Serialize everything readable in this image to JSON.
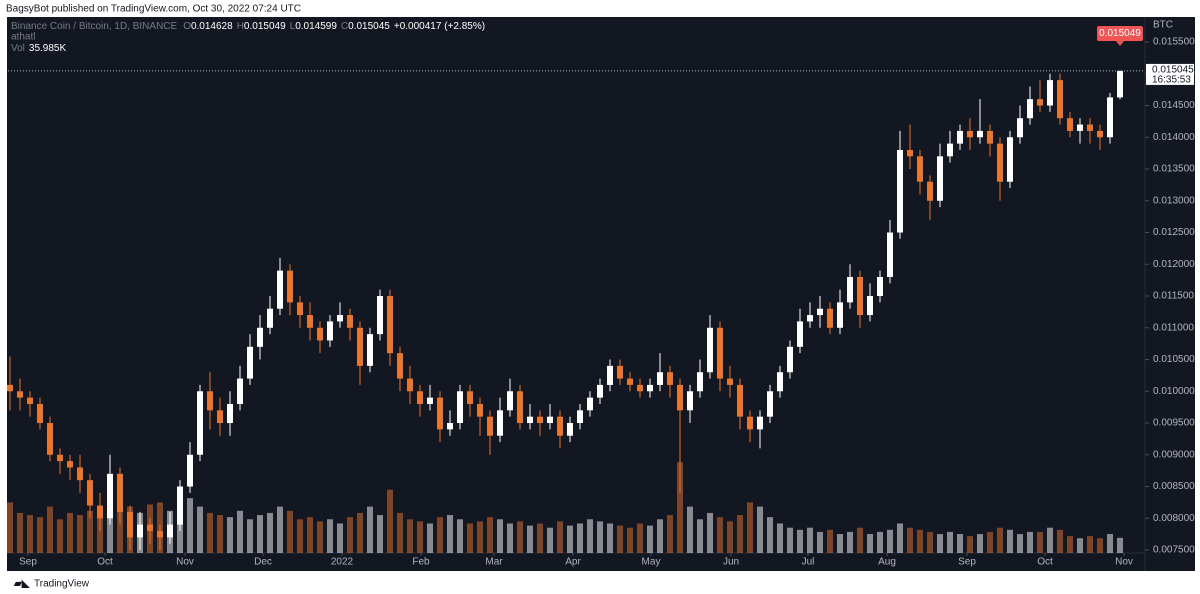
{
  "published": "BagsyBot published on TradingView.com, Oct 30, 2022 07:24 UTC",
  "footer": "TradingView",
  "chart_data": {
    "type": "candlestick",
    "title": "Binance Coin / Bitcoin, 1D, BINANCE",
    "legend": {
      "o": "O",
      "h": "H",
      "l": "L",
      "c": "C",
      "change": "+0.000417 (+2.85%)",
      "indicator": "athatl",
      "vol": "Vol",
      "vol_value": "35.985K"
    },
    "currency": "BTC",
    "countdown": "16:35:53",
    "up_color": "#ffffff",
    "down_color": "#e8762d",
    "xlim": [
      -0.2,
      113.5
    ],
    "xticks": [
      {
        "value": 1.8,
        "label": "Sep"
      },
      {
        "value": 9.5,
        "label": "Oct"
      },
      {
        "value": 17.5,
        "label": "Nov"
      },
      {
        "value": 25.3,
        "label": "Dec"
      },
      {
        "value": 33.2,
        "label": "2022"
      },
      {
        "value": 41.1,
        "label": "Feb"
      },
      {
        "value": 48.4,
        "label": "Mar"
      },
      {
        "value": 56.3,
        "label": "Apr"
      },
      {
        "value": 64.1,
        "label": "May"
      },
      {
        "value": 72.1,
        "label": "Jun"
      },
      {
        "value": 79.8,
        "label": "Jul"
      },
      {
        "value": 87.7,
        "label": "Aug"
      },
      {
        "value": 95.7,
        "label": "Sep"
      },
      {
        "value": 103.5,
        "label": "Oct"
      },
      {
        "value": 111.4,
        "label": "Nov"
      }
    ],
    "ylim": [
      0.007453,
      0.015894
    ],
    "yticks": [
      {
        "value": 0.0155,
        "label": "0.015500"
      },
      {
        "value": 0.015,
        "label": "0.015000"
      },
      {
        "value": 0.0145,
        "label": "0.014500"
      },
      {
        "value": 0.014,
        "label": "0.014000"
      },
      {
        "value": 0.0135,
        "label": "0.013500"
      },
      {
        "value": 0.013,
        "label": "0.013000"
      },
      {
        "value": 0.0125,
        "label": "0.012500"
      },
      {
        "value": 0.012,
        "label": "0.012000"
      },
      {
        "value": 0.0115,
        "label": "0.011500"
      },
      {
        "value": 0.011,
        "label": "0.011000"
      },
      {
        "value": 0.0105,
        "label": "0.010500"
      },
      {
        "value": 0.01,
        "label": "0.010000"
      },
      {
        "value": 0.0095,
        "label": "0.009500"
      },
      {
        "value": 0.009,
        "label": "0.009000"
      },
      {
        "value": 0.0085,
        "label": "0.008500"
      },
      {
        "value": 0.008,
        "label": "0.008000"
      },
      {
        "value": 0.0075,
        "label": "0.007500"
      }
    ],
    "volume_ylim": [
      0,
      600
    ],
    "open": [
      0.0101,
      0.01,
      0.0099,
      0.0098,
      0.0095,
      0.009,
      0.0089,
      0.0088,
      0.0086,
      0.0082,
      0.008,
      0.0087,
      0.0081,
      0.0077,
      0.0079,
      0.0078,
      0.0077,
      0.0079,
      0.0085,
      0.009,
      0.01,
      0.0097,
      0.0095,
      0.0098,
      0.0102,
      0.0107,
      0.011,
      0.0113,
      0.0119,
      0.0114,
      0.0112,
      0.011,
      0.0108,
      0.0111,
      0.0112,
      0.011,
      0.0104,
      0.0109,
      0.0115,
      0.0106,
      0.0102,
      0.01,
      0.0098,
      0.0099,
      0.0094,
      0.0095,
      0.01,
      0.0098,
      0.0096,
      0.0093,
      0.0097,
      0.01,
      0.0095,
      0.0096,
      0.0095,
      0.0096,
      0.0093,
      0.0095,
      0.0097,
      0.0099,
      0.0101,
      0.0104,
      0.0102,
      0.0101,
      0.01,
      0.0101,
      0.0103,
      0.0101,
      0.0097,
      0.01,
      0.0103,
      0.011,
      0.0102,
      0.0101,
      0.0096,
      0.0094,
      0.0096,
      0.01,
      0.0103,
      0.0107,
      0.0111,
      0.0112,
      0.0113,
      0.011,
      0.0114,
      0.0118,
      0.0112,
      0.0115,
      0.0118,
      0.0125,
      0.0138,
      0.0137,
      0.0133,
      0.013,
      0.0137,
      0.0139,
      0.0141,
      0.014,
      0.0141,
      0.0139,
      0.0133,
      0.014,
      0.0143,
      0.0146,
      0.0145,
      0.0149,
      0.0143,
      0.0141,
      0.0142,
      0.0141,
      0.014,
      0.014628
    ],
    "high": [
      0.01055,
      0.0102,
      0.01,
      0.0099,
      0.0096,
      0.0091,
      0.009,
      0.009,
      0.0087,
      0.0084,
      0.009,
      0.0088,
      0.0082,
      0.0081,
      0.008,
      0.0079,
      0.0081,
      0.0086,
      0.0092,
      0.0101,
      0.0103,
      0.0099,
      0.01,
      0.0104,
      0.0109,
      0.0112,
      0.0115,
      0.0121,
      0.012,
      0.0115,
      0.0114,
      0.0111,
      0.0112,
      0.0114,
      0.0113,
      0.0111,
      0.011,
      0.0116,
      0.0116,
      0.0107,
      0.0104,
      0.0101,
      0.0101,
      0.01,
      0.0097,
      0.0101,
      0.0101,
      0.0099,
      0.0097,
      0.0099,
      0.0102,
      0.0101,
      0.0098,
      0.0097,
      0.0098,
      0.0097,
      0.0096,
      0.0098,
      0.01,
      0.0102,
      0.0105,
      0.0105,
      0.0103,
      0.0102,
      0.0102,
      0.0106,
      0.0104,
      0.0102,
      0.0101,
      0.0105,
      0.0112,
      0.0111,
      0.0104,
      0.0102,
      0.0097,
      0.0097,
      0.0101,
      0.0104,
      0.0108,
      0.0113,
      0.0114,
      0.0115,
      0.0114,
      0.0116,
      0.012,
      0.0119,
      0.0117,
      0.0119,
      0.0127,
      0.0141,
      0.0142,
      0.0138,
      0.0134,
      0.0139,
      0.0141,
      0.0142,
      0.0143,
      0.0146,
      0.0142,
      0.014,
      0.0141,
      0.0145,
      0.0148,
      0.0149,
      0.015,
      0.015,
      0.0144,
      0.0143,
      0.0143,
      0.0142,
      0.0147,
      0.015049
    ],
    "low": [
      0.0097,
      0.0097,
      0.0096,
      0.0094,
      0.0089,
      0.0087,
      0.0086,
      0.0084,
      0.008,
      0.0078,
      0.0079,
      0.0079,
      0.0075,
      0.0075,
      0.0076,
      0.0075,
      0.0076,
      0.0078,
      0.0084,
      0.0089,
      0.0094,
      0.0093,
      0.0093,
      0.0097,
      0.0101,
      0.0105,
      0.0109,
      0.0112,
      0.0112,
      0.011,
      0.0108,
      0.0106,
      0.0107,
      0.011,
      0.0108,
      0.0101,
      0.0103,
      0.0108,
      0.0104,
      0.01,
      0.0098,
      0.0096,
      0.0097,
      0.0092,
      0.0093,
      0.0094,
      0.0096,
      0.0093,
      0.009,
      0.0092,
      0.0096,
      0.0094,
      0.0094,
      0.0093,
      0.0094,
      0.0091,
      0.0092,
      0.0094,
      0.0096,
      0.0098,
      0.01,
      0.0101,
      0.01,
      0.0099,
      0.0099,
      0.01,
      0.0099,
      0.0084,
      0.0095,
      0.0099,
      0.0102,
      0.01,
      0.0099,
      0.0094,
      0.0092,
      0.0091,
      0.0095,
      0.0099,
      0.0102,
      0.0106,
      0.011,
      0.011,
      0.0109,
      0.0109,
      0.0113,
      0.011,
      0.0111,
      0.0114,
      0.0117,
      0.0124,
      0.0135,
      0.0131,
      0.0127,
      0.0129,
      0.0136,
      0.0138,
      0.0138,
      0.0139,
      0.0137,
      0.013,
      0.0132,
      0.0139,
      0.0142,
      0.0144,
      0.0144,
      0.0142,
      0.014,
      0.0139,
      0.0139,
      0.0138,
      0.0139,
      0.014599
    ],
    "close": [
      0.01,
      0.0099,
      0.0098,
      0.0095,
      0.009,
      0.0089,
      0.0088,
      0.0086,
      0.0082,
      0.008,
      0.0087,
      0.0081,
      0.0077,
      0.0079,
      0.0078,
      0.0077,
      0.0079,
      0.0085,
      0.009,
      0.01,
      0.0097,
      0.0095,
      0.0098,
      0.0102,
      0.0107,
      0.011,
      0.0113,
      0.0119,
      0.0114,
      0.0112,
      0.011,
      0.0108,
      0.0111,
      0.0112,
      0.011,
      0.0104,
      0.0109,
      0.0115,
      0.0106,
      0.0102,
      0.01,
      0.0098,
      0.0099,
      0.0094,
      0.0095,
      0.01,
      0.0098,
      0.0096,
      0.0093,
      0.0097,
      0.01,
      0.0095,
      0.0096,
      0.0095,
      0.0096,
      0.0093,
      0.0095,
      0.0097,
      0.0099,
      0.0101,
      0.0104,
      0.0102,
      0.0101,
      0.01,
      0.0101,
      0.0103,
      0.0101,
      0.0097,
      0.01,
      0.0103,
      0.011,
      0.0102,
      0.0101,
      0.0096,
      0.0094,
      0.0096,
      0.01,
      0.0103,
      0.0107,
      0.0111,
      0.0112,
      0.0113,
      0.011,
      0.0114,
      0.0118,
      0.0112,
      0.0115,
      0.0118,
      0.0125,
      0.0138,
      0.0137,
      0.0133,
      0.013,
      0.0137,
      0.0139,
      0.0141,
      0.014,
      0.0141,
      0.0139,
      0.0133,
      0.014,
      0.0143,
      0.0146,
      0.0145,
      0.0149,
      0.0143,
      0.0141,
      0.0142,
      0.0141,
      0.014,
      0.014628,
      0.015045
    ],
    "volume": [
      120,
      95,
      90,
      85,
      110,
      80,
      95,
      90,
      100,
      105,
      140,
      100,
      110,
      95,
      115,
      120,
      100,
      90,
      130,
      110,
      95,
      90,
      85,
      100,
      80,
      90,
      95,
      110,
      100,
      80,
      85,
      75,
      80,
      70,
      85,
      95,
      110,
      90,
      150,
      95,
      80,
      75,
      70,
      85,
      90,
      80,
      70,
      75,
      85,
      80,
      70,
      75,
      65,
      70,
      60,
      75,
      65,
      70,
      80,
      75,
      70,
      65,
      60,
      70,
      65,
      80,
      90,
      215,
      110,
      80,
      95,
      85,
      75,
      90,
      120,
      110,
      85,
      70,
      60,
      55,
      60,
      50,
      55,
      45,
      50,
      60,
      45,
      50,
      55,
      70,
      60,
      55,
      50,
      45,
      50,
      45,
      40,
      45,
      50,
      60,
      55,
      45,
      50,
      50,
      60,
      55,
      40,
      35,
      40,
      35,
      45,
      35.985
    ]
  }
}
